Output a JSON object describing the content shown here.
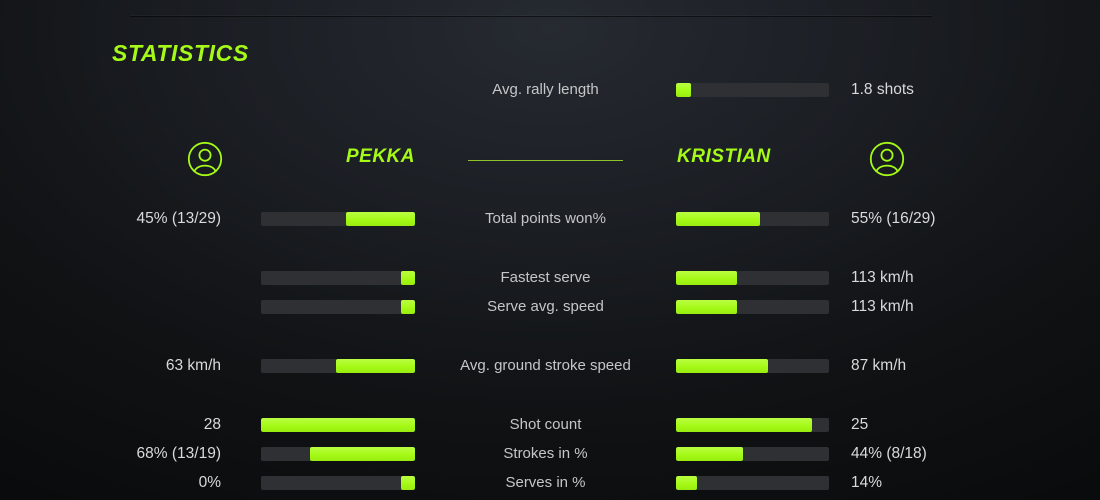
{
  "colors": {
    "accent": "#a6fa17",
    "track": "#2e3034",
    "value": "#d8dadc",
    "label": "#c4c6c8",
    "divider": "#8fc32c"
  },
  "header": {
    "title": "STATISTICS"
  },
  "rally": {
    "label": "Avg. rally length",
    "value": "1.8 shots",
    "fill_pct": 10
  },
  "players": {
    "left": {
      "name": "PEKKA",
      "icon": "person-icon"
    },
    "right": {
      "name": "KRISTIAN",
      "icon": "person-icon"
    }
  },
  "rows": [
    {
      "label": "Total points won%",
      "left_value": "45% (13/29)",
      "left_pct": 45,
      "right_value": "55% (16/29)",
      "right_pct": 55,
      "gap_before": false
    },
    {
      "label": "Fastest serve",
      "left_value": "",
      "left_pct": 9,
      "right_value": "113 km/h",
      "right_pct": 40,
      "gap_before": true
    },
    {
      "label": "Serve avg. speed",
      "left_value": "",
      "left_pct": 9,
      "right_value": "113 km/h",
      "right_pct": 40,
      "gap_before": false
    },
    {
      "label": "Avg. ground stroke speed",
      "left_value": "63 km/h",
      "left_pct": 51,
      "right_value": "87 km/h",
      "right_pct": 60,
      "gap_before": true
    },
    {
      "label": "Shot count",
      "left_value": "28",
      "left_pct": 100,
      "right_value": "25",
      "right_pct": 89,
      "gap_before": true
    },
    {
      "label": "Strokes in %",
      "left_value": "68% (13/19)",
      "left_pct": 68,
      "right_value": "44% (8/18)",
      "right_pct": 44,
      "gap_before": false
    },
    {
      "label": "Serves in %",
      "left_value": "0%",
      "left_pct": 9,
      "right_value": "14%",
      "right_pct": 14,
      "gap_before": false
    }
  ]
}
